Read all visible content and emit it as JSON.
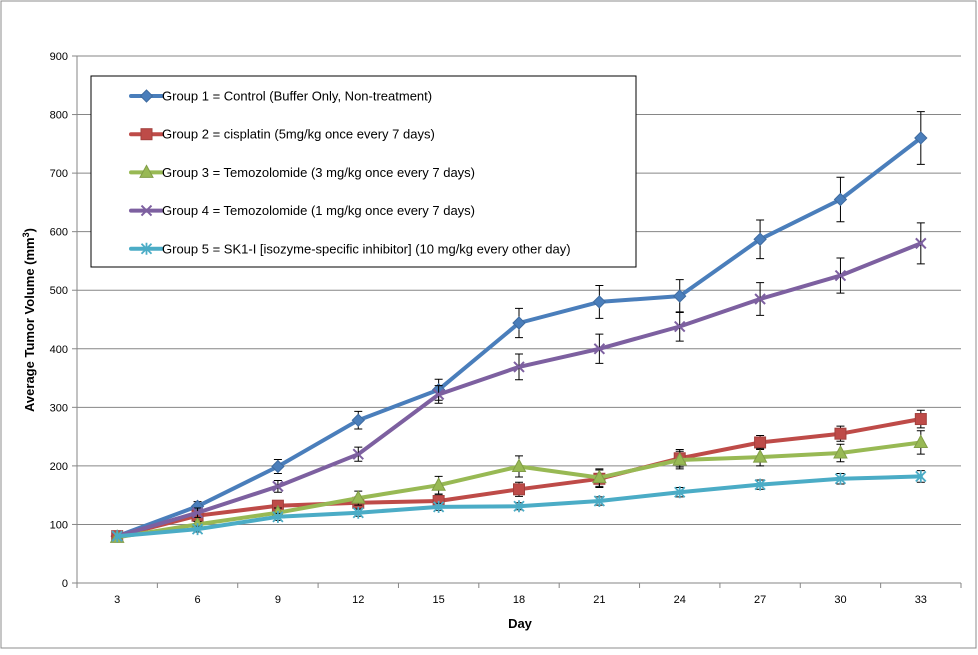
{
  "chart_data": {
    "type": "line",
    "title": "",
    "xlabel": "Day",
    "ylabel_main": "Average Tumor Volume (mm",
    "ylabel_sup": "3",
    "ylabel_close": ")",
    "x": [
      3,
      6,
      9,
      12,
      15,
      18,
      21,
      24,
      27,
      30,
      33
    ],
    "xticks": [
      "3",
      "6",
      "9",
      "12",
      "15",
      "18",
      "21",
      "24",
      "27",
      "30",
      "33"
    ],
    "ylim": [
      0,
      900
    ],
    "yticks": [
      0,
      100,
      200,
      300,
      400,
      500,
      600,
      700,
      800,
      900
    ],
    "grid": "horizontal",
    "legend_position": "top-left",
    "series": [
      {
        "name": "Group 1 = Control (Buffer Only, Non-treatment)",
        "color": "#4A7EBB",
        "marker": "diamond",
        "values": [
          80,
          131,
          199,
          278,
          330,
          444,
          480,
          490,
          587,
          655,
          760
        ],
        "error": [
          0,
          8,
          12,
          15,
          18,
          25,
          28,
          28,
          33,
          38,
          45
        ]
      },
      {
        "name": "Group 2 = cisplatin (5mg/kg once every 7 days)",
        "color": "#BE4B48",
        "marker": "square",
        "values": [
          80,
          115,
          132,
          137,
          140,
          160,
          178,
          213,
          240,
          255,
          280
        ],
        "error": [
          0,
          5,
          8,
          10,
          10,
          12,
          15,
          15,
          12,
          13,
          15
        ]
      },
      {
        "name": "Group 3 =  Temozolomide (3 mg/kg once every 7 days)",
        "color": "#98B954",
        "marker": "triangle",
        "values": [
          78,
          100,
          120,
          145,
          167,
          199,
          180,
          210,
          215,
          222,
          240
        ],
        "error": [
          0,
          5,
          8,
          12,
          15,
          18,
          15,
          15,
          15,
          15,
          20
        ]
      },
      {
        "name": "Group 4 =  Temozolomide (1 mg/kg once every 7 days)",
        "color": "#7D60A0",
        "marker": "x",
        "values": [
          80,
          120,
          165,
          220,
          322,
          369,
          400,
          438,
          485,
          525,
          580
        ],
        "error": [
          0,
          8,
          10,
          12,
          15,
          22,
          25,
          25,
          28,
          30,
          35
        ]
      },
      {
        "name": "Group 5 = SK1-I [isozyme-specific inhibitor] (10 mg/kg every other day)",
        "color": "#4BACC6",
        "marker": "star",
        "values": [
          80,
          92,
          113,
          120,
          130,
          131,
          140,
          155,
          168,
          178,
          182
        ],
        "error": [
          0,
          5,
          6,
          6,
          6,
          6,
          7,
          8,
          8,
          9,
          10
        ]
      }
    ]
  }
}
